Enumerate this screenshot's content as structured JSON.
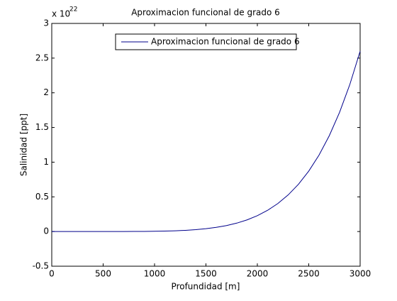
{
  "chart_data": {
    "type": "line",
    "title": "Aproximacion funcional de grado 6",
    "x_label": "Profundidad [m]",
    "y_label": "Salinidad [ppt]",
    "y_multiplier": "x 10",
    "y_exponent": "22",
    "x": [
      0,
      100,
      200,
      300,
      400,
      500,
      600,
      700,
      800,
      900,
      1000,
      1100,
      1200,
      1300,
      1400,
      1500,
      1600,
      1700,
      1800,
      1900,
      2000,
      2100,
      2200,
      2300,
      2400,
      2500,
      2600,
      2700,
      2800,
      2900,
      3000
    ],
    "series": [
      {
        "name": "Aproximacion funcional de grado 6",
        "color": "#00008b",
        "values": [
          0,
          0,
          0,
          0,
          0,
          0,
          0.0002,
          0.0004,
          0.0009,
          0.0019,
          0.0036,
          0.0063,
          0.0106,
          0.0172,
          0.0269,
          0.0406,
          0.0598,
          0.0861,
          0.1213,
          0.1678,
          0.2283,
          0.3059,
          0.4044,
          0.5281,
          0.6816,
          0.8707,
          1.1018,
          1.3817,
          1.7186,
          2.1213,
          2.6
        ]
      }
    ],
    "xlim": [
      0,
      3000
    ],
    "xticks": [
      0,
      500,
      1000,
      1500,
      2000,
      2500,
      3000
    ],
    "ylim": [
      -0.5,
      3
    ],
    "yticks": [
      -0.5,
      0,
      0.5,
      1,
      1.5,
      2,
      2.5,
      3
    ],
    "legend": "north",
    "grid": false
  }
}
